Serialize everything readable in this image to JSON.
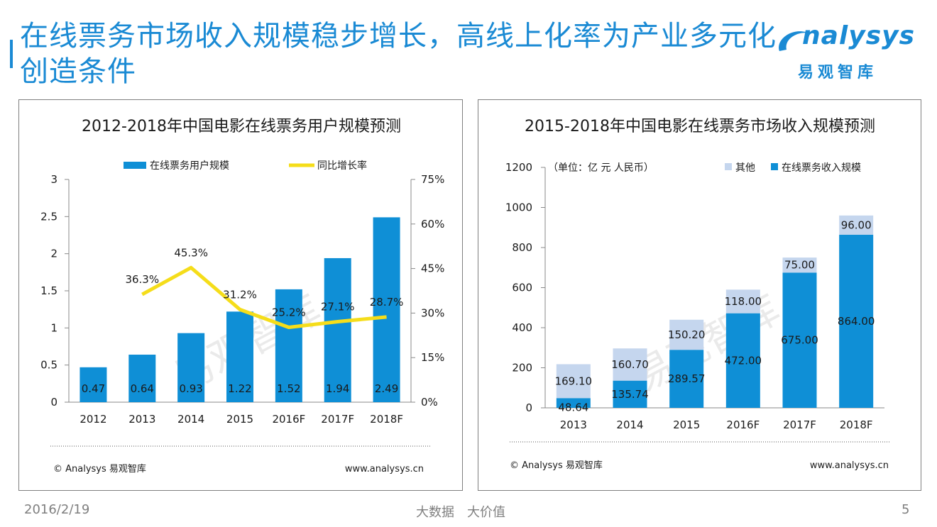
{
  "page": {
    "title": "在线票务市场收入规模稳步增长，高线上化率为产业多元化创造条件",
    "logo_text": "nalysys",
    "logo_cn": "易观智库",
    "footer_date": "2016/2/19",
    "footer_slogan": "大数据　大价值",
    "footer_page": "5",
    "accent_color": "#1a8ad4"
  },
  "chart_data": [
    {
      "type": "bar",
      "title": "2012-2018年中国电影在线票务用户规模预测",
      "categories": [
        "2012",
        "2013",
        "2014",
        "2015",
        "2016F",
        "2017F",
        "2018F"
      ],
      "series": [
        {
          "name": "在线票务用户规模",
          "type": "bar",
          "axis": "left",
          "color": "#0f8fd6",
          "values": [
            0.47,
            0.64,
            0.93,
            1.22,
            1.52,
            1.94,
            2.49
          ],
          "labels": [
            "0.47",
            "0.64",
            "0.93",
            "1.22",
            "1.52",
            "1.94",
            "2.49"
          ]
        },
        {
          "name": "同比增长率",
          "type": "line",
          "axis": "right",
          "color": "#f5dd1a",
          "values": [
            null,
            36.3,
            45.3,
            31.2,
            25.2,
            27.1,
            28.7
          ],
          "labels": [
            "",
            "36.3%",
            "45.3%",
            "31.2%",
            "25.2%",
            "27.1%",
            "28.7%"
          ]
        }
      ],
      "ylim": [
        0,
        3
      ],
      "yticks": [
        "0",
        "0.5",
        "1",
        "1.5",
        "2",
        "2.5",
        "3"
      ],
      "y2lim": [
        0,
        75
      ],
      "y2ticks": [
        "0%",
        "15%",
        "30%",
        "45%",
        "60%",
        "75%"
      ],
      "legend_position": "top-center",
      "watermark": "易观智库",
      "source_left": "© Analysys 易观智库",
      "source_right": "www.analysys.cn"
    },
    {
      "type": "stacked-bar",
      "title": "2015-2018年中国电影在线票务市场收入规模预测",
      "unit": "（单位：亿 元 人民币）",
      "categories": [
        "2013",
        "2014",
        "2015",
        "2016F",
        "2017F",
        "2018F"
      ],
      "series": [
        {
          "name": "在线票务收入规模",
          "color": "#0f8fd6",
          "values": [
            48.64,
            135.74,
            289.57,
            472.0,
            675.0,
            864.0
          ],
          "labels": [
            "48.64",
            "135.74",
            "289.57",
            "472.00",
            "675.00",
            "864.00"
          ]
        },
        {
          "name": "其他",
          "color": "#c5d6ee",
          "values": [
            169.1,
            160.7,
            150.2,
            118.0,
            75.0,
            96.0
          ],
          "labels": [
            "169.10",
            "160.70",
            "150.20",
            "118.00",
            "75.00",
            "96.00"
          ]
        }
      ],
      "ylim": [
        0,
        1200
      ],
      "yticks": [
        "0",
        "200",
        "400",
        "600",
        "800",
        "1000",
        "1200"
      ],
      "legend_position": "top-right",
      "watermark": "易观智库",
      "source_left": "© Analysys 易观智库",
      "source_right": "www.analysys.cn"
    }
  ]
}
